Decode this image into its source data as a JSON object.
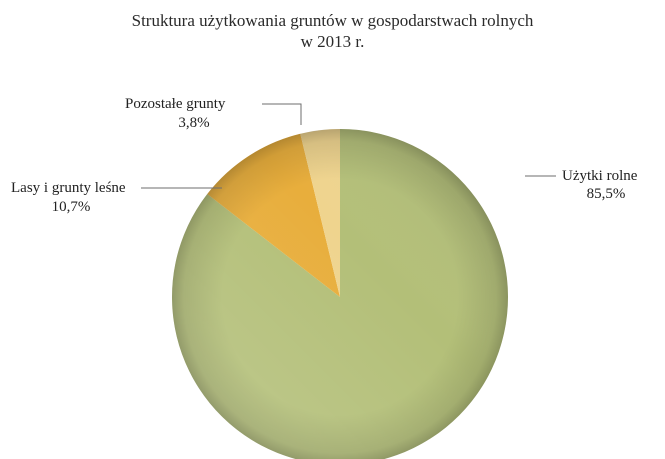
{
  "chart_data": {
    "type": "pie",
    "title_lines": [
      "Struktura użytkowania gruntów w gospodarstwach rolnych",
      "w 2013 r."
    ],
    "slices": [
      {
        "label": "Użytki rolne",
        "value": 85.5,
        "value_label": "85,5%",
        "color": "#b3bf78"
      },
      {
        "label": "Lasy i grunty leśne",
        "value": 10.7,
        "value_label": "10,7%",
        "color": "#e8ae3c"
      },
      {
        "label": "Pozostałe grunty",
        "value": 3.8,
        "value_label": "3,8%",
        "color": "#efd48e"
      }
    ],
    "legend": "none (callout labels)"
  }
}
